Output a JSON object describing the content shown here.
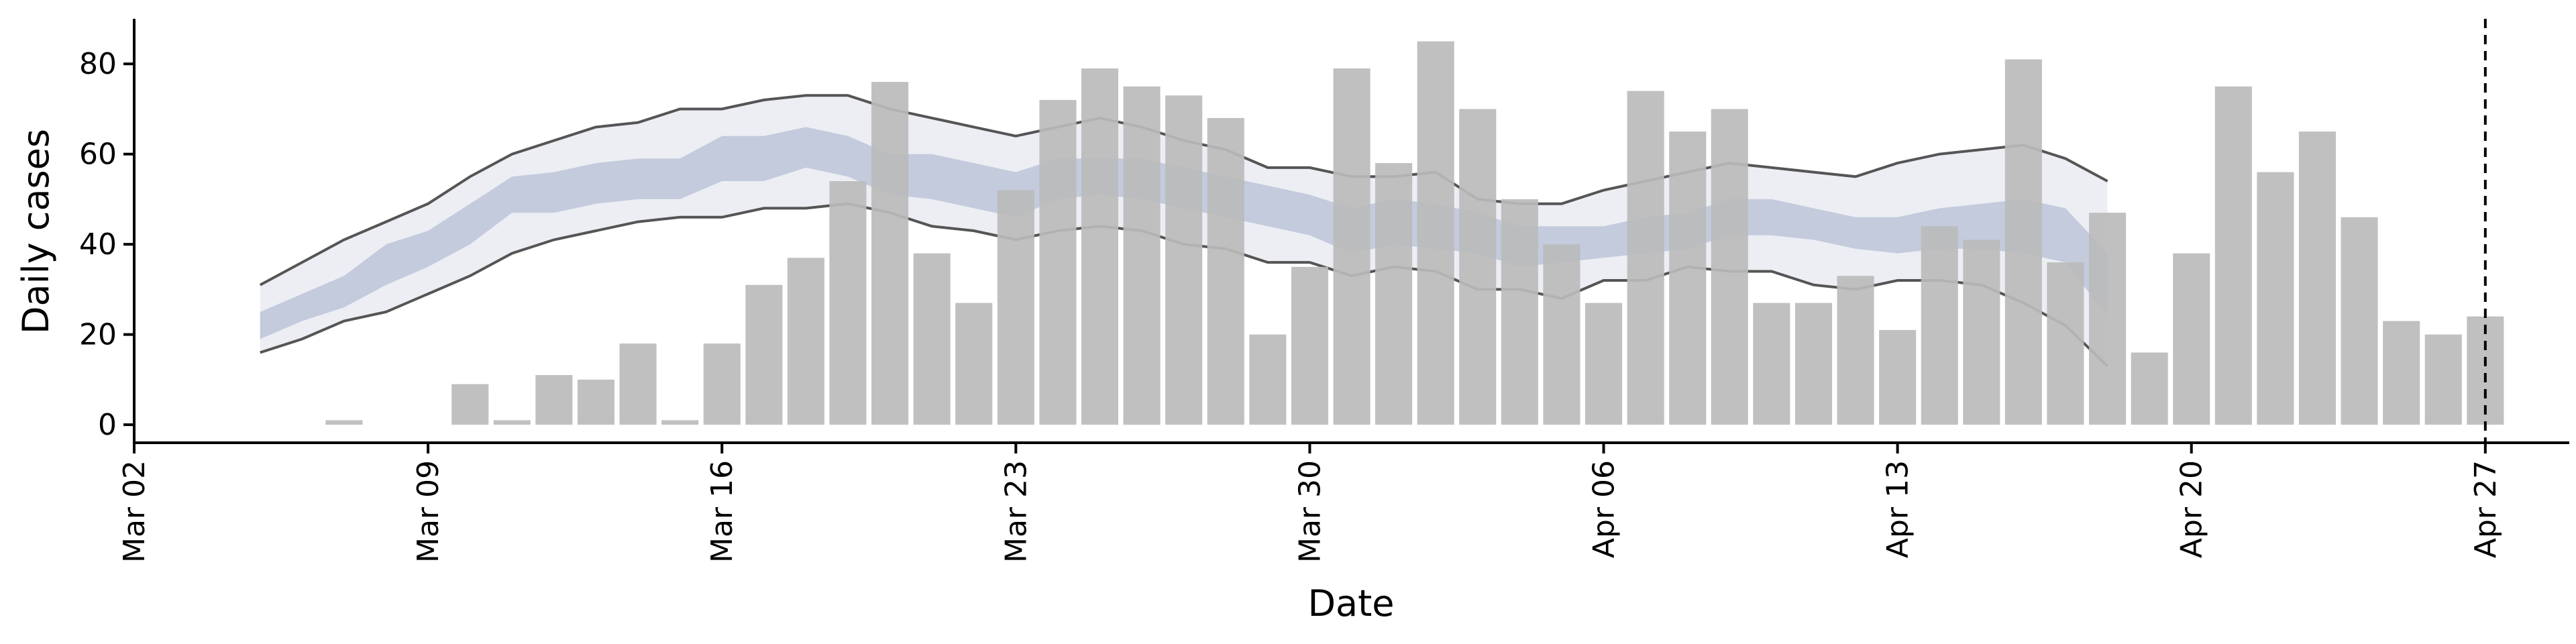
{
  "chart_data": {
    "type": "bar",
    "xlabel": "Date",
    "ylabel": "Daily cases",
    "x_ticks": [
      "Mar 02",
      "Mar 09",
      "Mar 16",
      "Mar 23",
      "Mar 30",
      "Apr 06",
      "Apr 13",
      "Apr 20",
      "Apr 27"
    ],
    "y_ticks": [
      0,
      20,
      40,
      60,
      80
    ],
    "ylim": [
      -4,
      90
    ],
    "xlim": [
      "2020-03-02",
      "2020-04-29"
    ],
    "grid": false,
    "bar_color": "#bbbbbb",
    "band_outer_color": "#e6e8f0",
    "band_inner_color": "#a9b4cc",
    "bound_line_color": "#555555",
    "reference_line": {
      "date": "2020-04-27",
      "style": "dashed",
      "color": "#000000"
    },
    "bars": {
      "dates": [
        "2020-03-07",
        "2020-03-08",
        "2020-03-09",
        "2020-03-10",
        "2020-03-11",
        "2020-03-12",
        "2020-03-13",
        "2020-03-14",
        "2020-03-15",
        "2020-03-16",
        "2020-03-17",
        "2020-03-18",
        "2020-03-19",
        "2020-03-20",
        "2020-03-21",
        "2020-03-22",
        "2020-03-23",
        "2020-03-24",
        "2020-03-25",
        "2020-03-26",
        "2020-03-27",
        "2020-03-28",
        "2020-03-29",
        "2020-03-30",
        "2020-03-31",
        "2020-04-01",
        "2020-04-02",
        "2020-04-03",
        "2020-04-04",
        "2020-04-05",
        "2020-04-06",
        "2020-04-07",
        "2020-04-08",
        "2020-04-09",
        "2020-04-10",
        "2020-04-11",
        "2020-04-12",
        "2020-04-13",
        "2020-04-14",
        "2020-04-15",
        "2020-04-16",
        "2020-04-17",
        "2020-04-18",
        "2020-04-19",
        "2020-04-20",
        "2020-04-21",
        "2020-04-22",
        "2020-04-23",
        "2020-04-24",
        "2020-04-25",
        "2020-04-26",
        "2020-04-27"
      ],
      "values": [
        1,
        0,
        0,
        9,
        1,
        11,
        10,
        18,
        1,
        18,
        31,
        37,
        54,
        76,
        38,
        27,
        52,
        72,
        79,
        75,
        73,
        68,
        20,
        35,
        79,
        58,
        85,
        70,
        50,
        40,
        27,
        74,
        65,
        70,
        27,
        27,
        33,
        21,
        44,
        41,
        81,
        36,
        47,
        16,
        38,
        75,
        56,
        65,
        46,
        23,
        20,
        24
      ]
    },
    "band": {
      "dates": [
        "2020-03-05",
        "2020-03-06",
        "2020-03-07",
        "2020-03-08",
        "2020-03-09",
        "2020-03-10",
        "2020-03-11",
        "2020-03-12",
        "2020-03-13",
        "2020-03-14",
        "2020-03-15",
        "2020-03-16",
        "2020-03-17",
        "2020-03-18",
        "2020-03-19",
        "2020-03-20",
        "2020-03-21",
        "2020-03-22",
        "2020-03-23",
        "2020-03-24",
        "2020-03-25",
        "2020-03-26",
        "2020-03-27",
        "2020-03-28",
        "2020-03-29",
        "2020-03-30",
        "2020-03-31",
        "2020-04-01",
        "2020-04-02",
        "2020-04-03",
        "2020-04-04",
        "2020-04-05",
        "2020-04-06",
        "2020-04-07",
        "2020-04-08",
        "2020-04-09",
        "2020-04-10",
        "2020-04-11",
        "2020-04-12",
        "2020-04-13",
        "2020-04-14",
        "2020-04-15",
        "2020-04-16",
        "2020-04-17",
        "2020-04-18"
      ],
      "outer_upper": [
        31,
        36,
        41,
        45,
        49,
        55,
        60,
        63,
        66,
        67,
        70,
        70,
        72,
        73,
        73,
        70,
        68,
        66,
        64,
        66,
        68,
        66,
        63,
        61,
        57,
        57,
        55,
        55,
        56,
        50,
        49,
        49,
        52,
        54,
        56,
        58,
        57,
        56,
        55,
        58,
        60,
        61,
        62,
        59,
        54
      ],
      "inner_upper": [
        25,
        29,
        33,
        40,
        43,
        49,
        55,
        56,
        58,
        59,
        59,
        64,
        64,
        66,
        64,
        60,
        60,
        58,
        56,
        59,
        59,
        59,
        57,
        55,
        53,
        51,
        48,
        50,
        49,
        47,
        44,
        44,
        44,
        46,
        47,
        50,
        50,
        48,
        46,
        46,
        48,
        49,
        50,
        48,
        38
      ],
      "inner_lower": [
        19,
        23,
        26,
        31,
        35,
        40,
        47,
        47,
        49,
        50,
        50,
        54,
        54,
        57,
        55,
        51,
        50,
        48,
        46,
        50,
        51,
        50,
        48,
        46,
        44,
        42,
        38,
        40,
        39,
        38,
        35,
        36,
        37,
        38,
        39,
        42,
        42,
        41,
        39,
        38,
        39,
        39,
        38,
        36,
        24
      ],
      "outer_lower": [
        16,
        19,
        23,
        25,
        29,
        33,
        38,
        41,
        43,
        45,
        46,
        46,
        48,
        48,
        49,
        47,
        44,
        43,
        41,
        43,
        44,
        43,
        40,
        39,
        36,
        36,
        33,
        35,
        34,
        30,
        30,
        28,
        32,
        32,
        35,
        34,
        34,
        31,
        30,
        32,
        32,
        31,
        27,
        22,
        13
      ]
    }
  }
}
